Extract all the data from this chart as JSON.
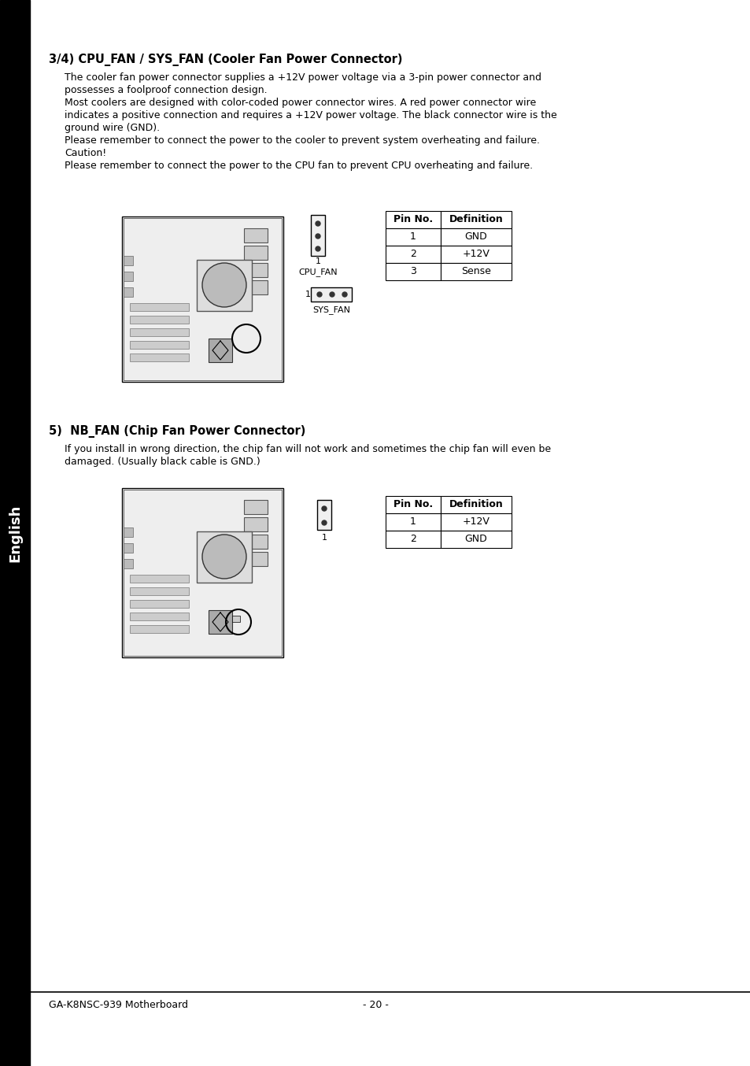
{
  "bg_color": "#ffffff",
  "sidebar_color": "#000000",
  "sidebar_text": "English",
  "sidebar_text_color": "#ffffff",
  "title1": "3/4) CPU_FAN / SYS_FAN (Cooler Fan Power Connector)",
  "body1_lines": [
    "The cooler fan power connector supplies a +12V power voltage via a 3-pin power connector and",
    "possesses a foolproof connection design.",
    "Most coolers are designed with color-coded power connector wires. A red power connector wire",
    "indicates a positive connection and requires a +12V power voltage. The black connector wire is the",
    "ground wire (GND).",
    "Please remember to connect the power to the cooler to prevent system overheating and failure.",
    "Caution!",
    "Please remember to connect the power to the CPU fan to prevent CPU overheating and failure."
  ],
  "title2": "5)  NB_FAN (Chip Fan Power Connector)",
  "body2_lines": [
    "If you install in wrong direction, the chip fan will not work and sometimes the chip fan will even be",
    "damaged. (Usually black cable is GND.)"
  ],
  "cpu_fan_table": {
    "headers": [
      "Pin No.",
      "Definition"
    ],
    "rows": [
      [
        "1",
        "GND"
      ],
      [
        "2",
        "+12V"
      ],
      [
        "3",
        "Sense"
      ]
    ]
  },
  "nb_fan_table": {
    "headers": [
      "Pin No.",
      "Definition"
    ],
    "rows": [
      [
        "1",
        "+12V"
      ],
      [
        "2",
        "GND"
      ]
    ]
  },
  "cpu_fan_label": "CPU_FAN",
  "sys_fan_label": "SYS_FAN",
  "footer_left": "GA-K8NSC-939 Motherboard",
  "footer_center": "- 20 -",
  "font_family": "DejaVu Sans"
}
